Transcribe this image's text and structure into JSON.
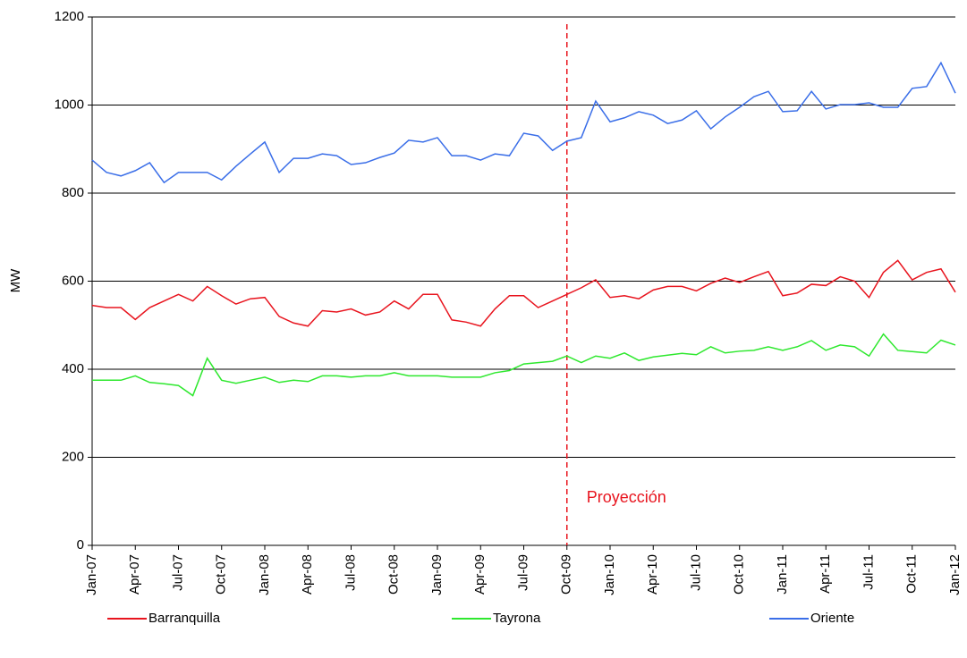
{
  "chart_data": {
    "type": "line",
    "y_label": "MW",
    "categories": [
      "Jan-07",
      null,
      null,
      "Apr-07",
      null,
      null,
      "Jul-07",
      null,
      null,
      "Oct-07",
      null,
      null,
      "Jan-08",
      null,
      null,
      "Apr-08",
      null,
      null,
      "Jul-08",
      null,
      null,
      "Oct-08",
      null,
      null,
      "Jan-09",
      null,
      null,
      "Apr-09",
      null,
      null,
      "Jul-09",
      null,
      null,
      "Oct-09",
      null,
      null,
      "Jan-10",
      null,
      null,
      "Apr-10",
      null,
      null,
      "Jul-10",
      null,
      null,
      "Oct-10",
      null,
      null,
      "Jan-11",
      null,
      null,
      "Apr-11",
      null,
      null,
      "Jul-11",
      null,
      null,
      "Oct-11",
      null,
      null,
      "Jan-12"
    ],
    "series": [
      {
        "name": "Barranquilla",
        "color": "#e8141e",
        "values": [
          545,
          540,
          540,
          513,
          540,
          555,
          570,
          555,
          588,
          567,
          548,
          560,
          563,
          520,
          505,
          498,
          533,
          530,
          537,
          523,
          530,
          555,
          537,
          570,
          570,
          512,
          507,
          498,
          537,
          567,
          567,
          540,
          555,
          570,
          585,
          603,
          563,
          567,
          560,
          580,
          588,
          588,
          578,
          595,
          607,
          597,
          610,
          622,
          567,
          573,
          593,
          590,
          610,
          600,
          563,
          620,
          647,
          603,
          620,
          628,
          575
        ]
      },
      {
        "name": "Tayrona",
        "color": "#2ee82e",
        "values": [
          375,
          375,
          375,
          385,
          370,
          367,
          363,
          340,
          425,
          375,
          368,
          375,
          382,
          370,
          375,
          372,
          385,
          385,
          382,
          385,
          385,
          392,
          385,
          385,
          385,
          382,
          382,
          382,
          392,
          397,
          412,
          415,
          418,
          430,
          415,
          430,
          425,
          437,
          420,
          428,
          432,
          436,
          433,
          451,
          437,
          441,
          443,
          451,
          443,
          451,
          465,
          443,
          455,
          451,
          430,
          480,
          443,
          440,
          437,
          466,
          455
        ]
      },
      {
        "name": "Oriente",
        "color": "#3a6ee8",
        "values": [
          875,
          847,
          839,
          851,
          869,
          824,
          847,
          847,
          847,
          830,
          861,
          889,
          916,
          847,
          879,
          879,
          889,
          885,
          865,
          869,
          881,
          891,
          920,
          916,
          926,
          885,
          885,
          875,
          889,
          885,
          936,
          930,
          897,
          918,
          926,
          1009,
          962,
          971,
          985,
          977,
          958,
          966,
          987,
          946,
          973,
          995,
          1019,
          1031,
          985,
          987,
          1031,
          991,
          1001,
          1001,
          1005,
          995,
          995,
          1038,
          1042,
          1096,
          1027
        ]
      }
    ],
    "ylim": [
      0,
      1200
    ],
    "yticks": [
      0,
      200,
      400,
      600,
      800,
      1000,
      1200
    ],
    "grid": true,
    "legend": "bottom",
    "annotation": {
      "text": "Proyección",
      "at": "Oct-09",
      "color": "#e8141e"
    }
  }
}
